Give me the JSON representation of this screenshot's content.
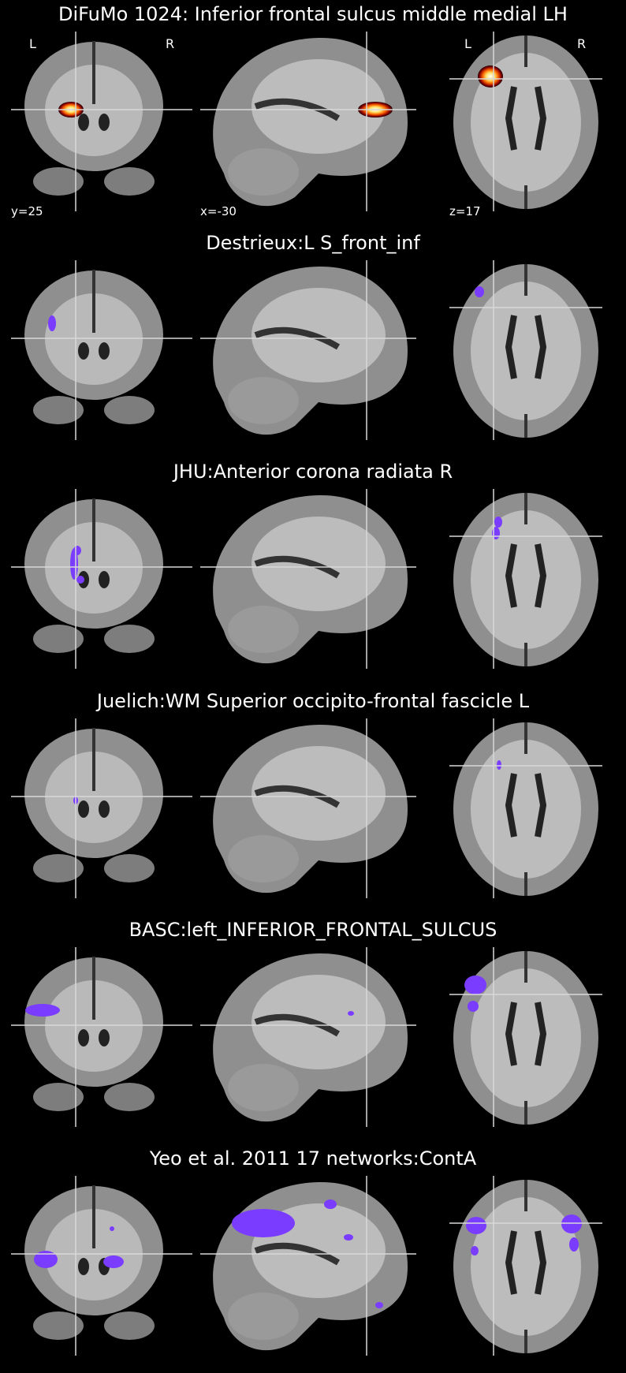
{
  "colors": {
    "background": "#000000",
    "atlas_overlay": "#7a3cff",
    "heat_low": "#8b0000",
    "heat_mid": "#ff6a00",
    "heat_high": "#ffffff",
    "crosshair": "#d8d8d8"
  },
  "orientation": {
    "left": "L",
    "right": "R"
  },
  "cut_coords": {
    "y": "y=25",
    "x": "x=-30",
    "z": "z=17"
  },
  "panels": [
    {
      "title": "DiFuMo 1024: Inferior frontal sulcus middle medial LH",
      "overlay": "heat"
    },
    {
      "title": "Destrieux:L S_front_inf",
      "overlay": "atlas"
    },
    {
      "title": "JHU:Anterior corona radiata R",
      "overlay": "atlas"
    },
    {
      "title": "Juelich:WM Superior occipito-frontal fascicle L",
      "overlay": "atlas"
    },
    {
      "title": "BASC:left_INFERIOR_FRONTAL_SULCUS",
      "overlay": "atlas"
    },
    {
      "title": "Yeo et al. 2011 17 networks:ContA",
      "overlay": "atlas"
    }
  ],
  "icons": [
    "coronal-brain-slice",
    "sagittal-brain-slice",
    "axial-brain-slice"
  ]
}
